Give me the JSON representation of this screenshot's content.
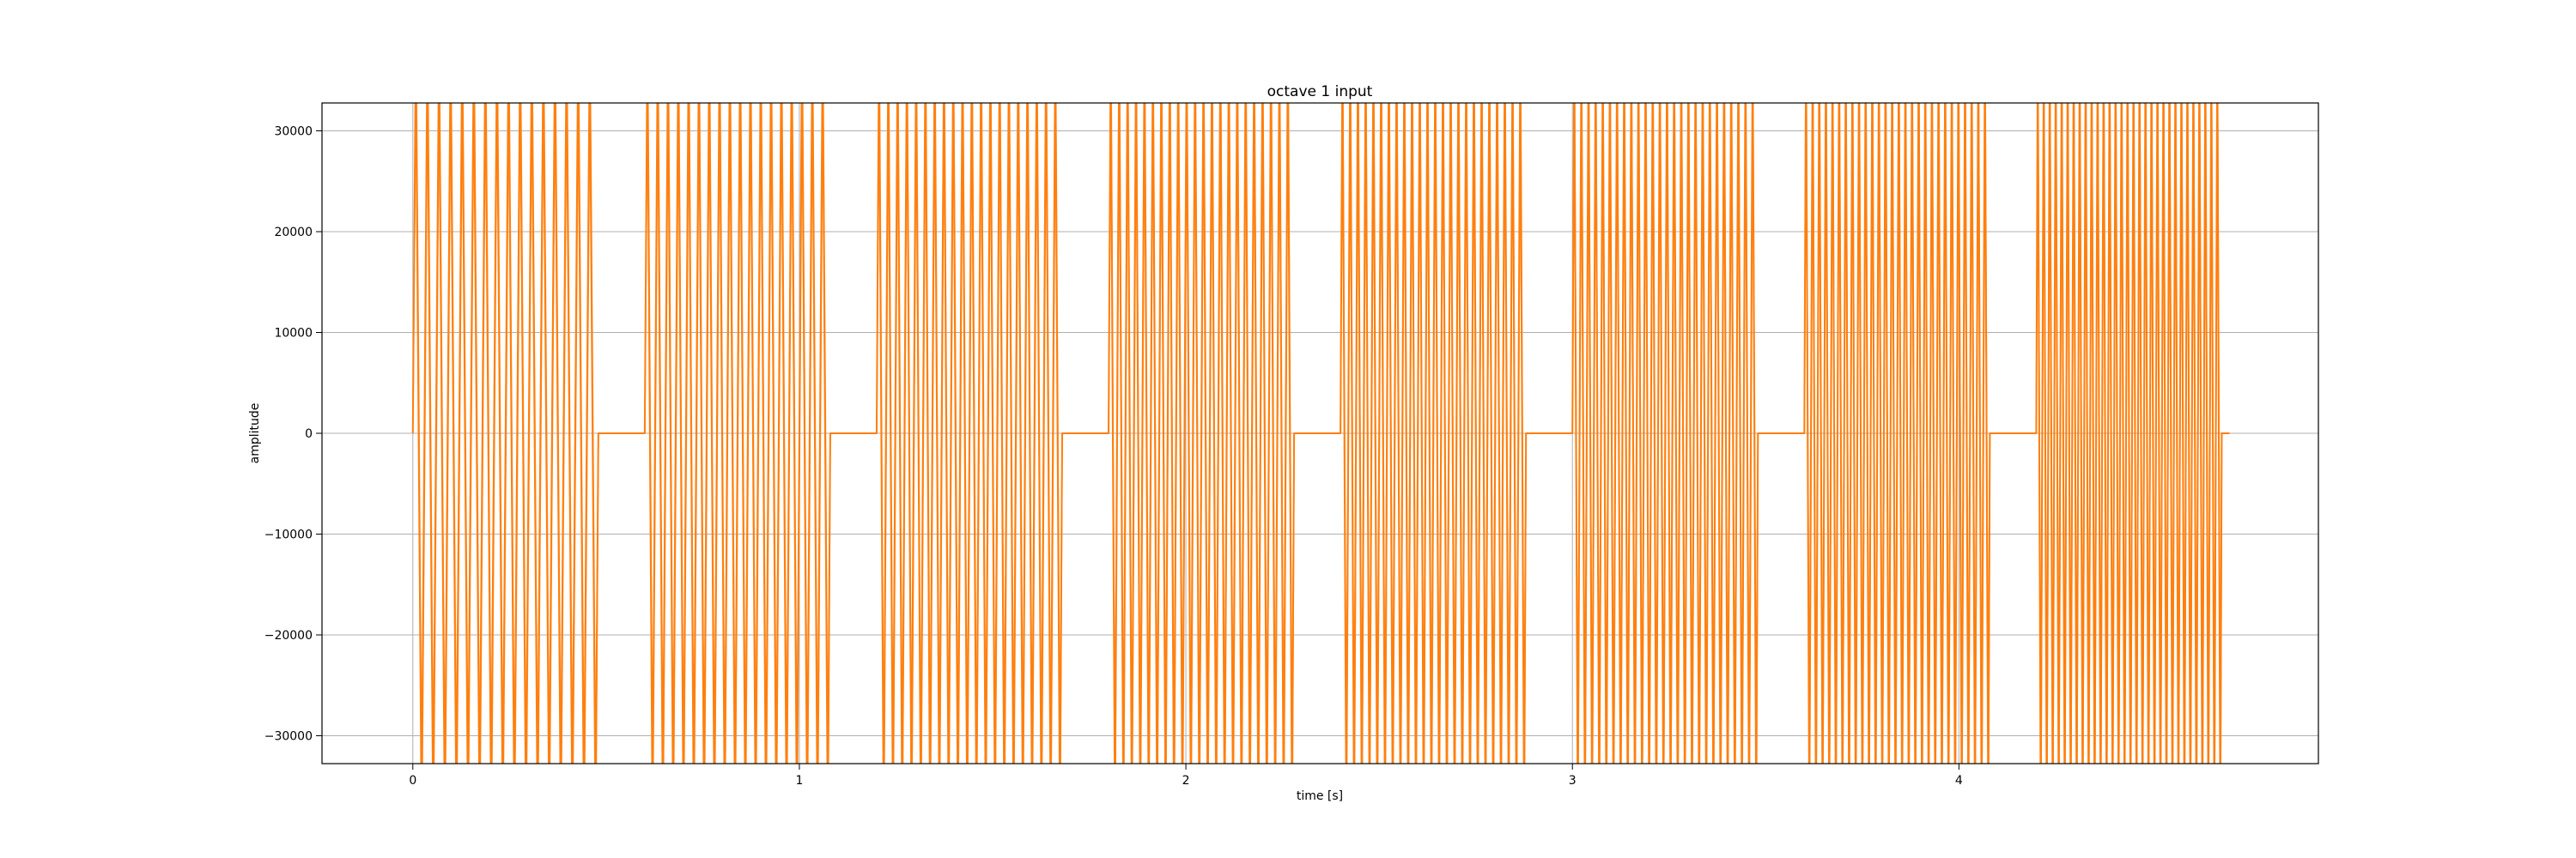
{
  "chart_data": {
    "type": "line",
    "title": "octave 1 input",
    "xlabel": "time [s]",
    "ylabel": "amplitude",
    "xlim": [
      -0.235,
      4.93
    ],
    "ylim": [
      -32767,
      32767
    ],
    "xticks": [
      0,
      1,
      2,
      3,
      4
    ],
    "xtick_labels": [
      "0",
      "1",
      "2",
      "3",
      "4"
    ],
    "yticks": [
      -30000,
      -20000,
      -10000,
      0,
      10000,
      20000,
      30000
    ],
    "ytick_labels": [
      "−30000",
      "−20000",
      "−10000",
      "0",
      "10000",
      "20000",
      "30000"
    ],
    "grid": true,
    "legend": "none",
    "colors": {
      "line_primary": "#ff7f0e",
      "line_overlay": "#ff7f0e",
      "grid": "#b0b0b0",
      "frame": "#000000"
    },
    "waveform": "square-like tone bursts separated by short silences, clipped at full scale",
    "segments": [
      {
        "start": 0.0,
        "end": 0.48,
        "periods": 16,
        "level": 32767
      },
      {
        "start": 0.6,
        "end": 1.08,
        "periods": 18,
        "level": 32767
      },
      {
        "start": 1.2,
        "end": 1.68,
        "periods": 20,
        "level": 32767
      },
      {
        "start": 1.8,
        "end": 2.28,
        "periods": 22,
        "level": 32767
      },
      {
        "start": 2.4,
        "end": 2.88,
        "periods": 24,
        "level": 32767
      },
      {
        "start": 3.0,
        "end": 3.48,
        "periods": 26,
        "level": 32767
      },
      {
        "start": 3.6,
        "end": 4.08,
        "periods": 28,
        "level": 32767
      },
      {
        "start": 4.2,
        "end": 4.68,
        "periods": 31,
        "level": 32767
      }
    ],
    "x_end": 4.7
  }
}
